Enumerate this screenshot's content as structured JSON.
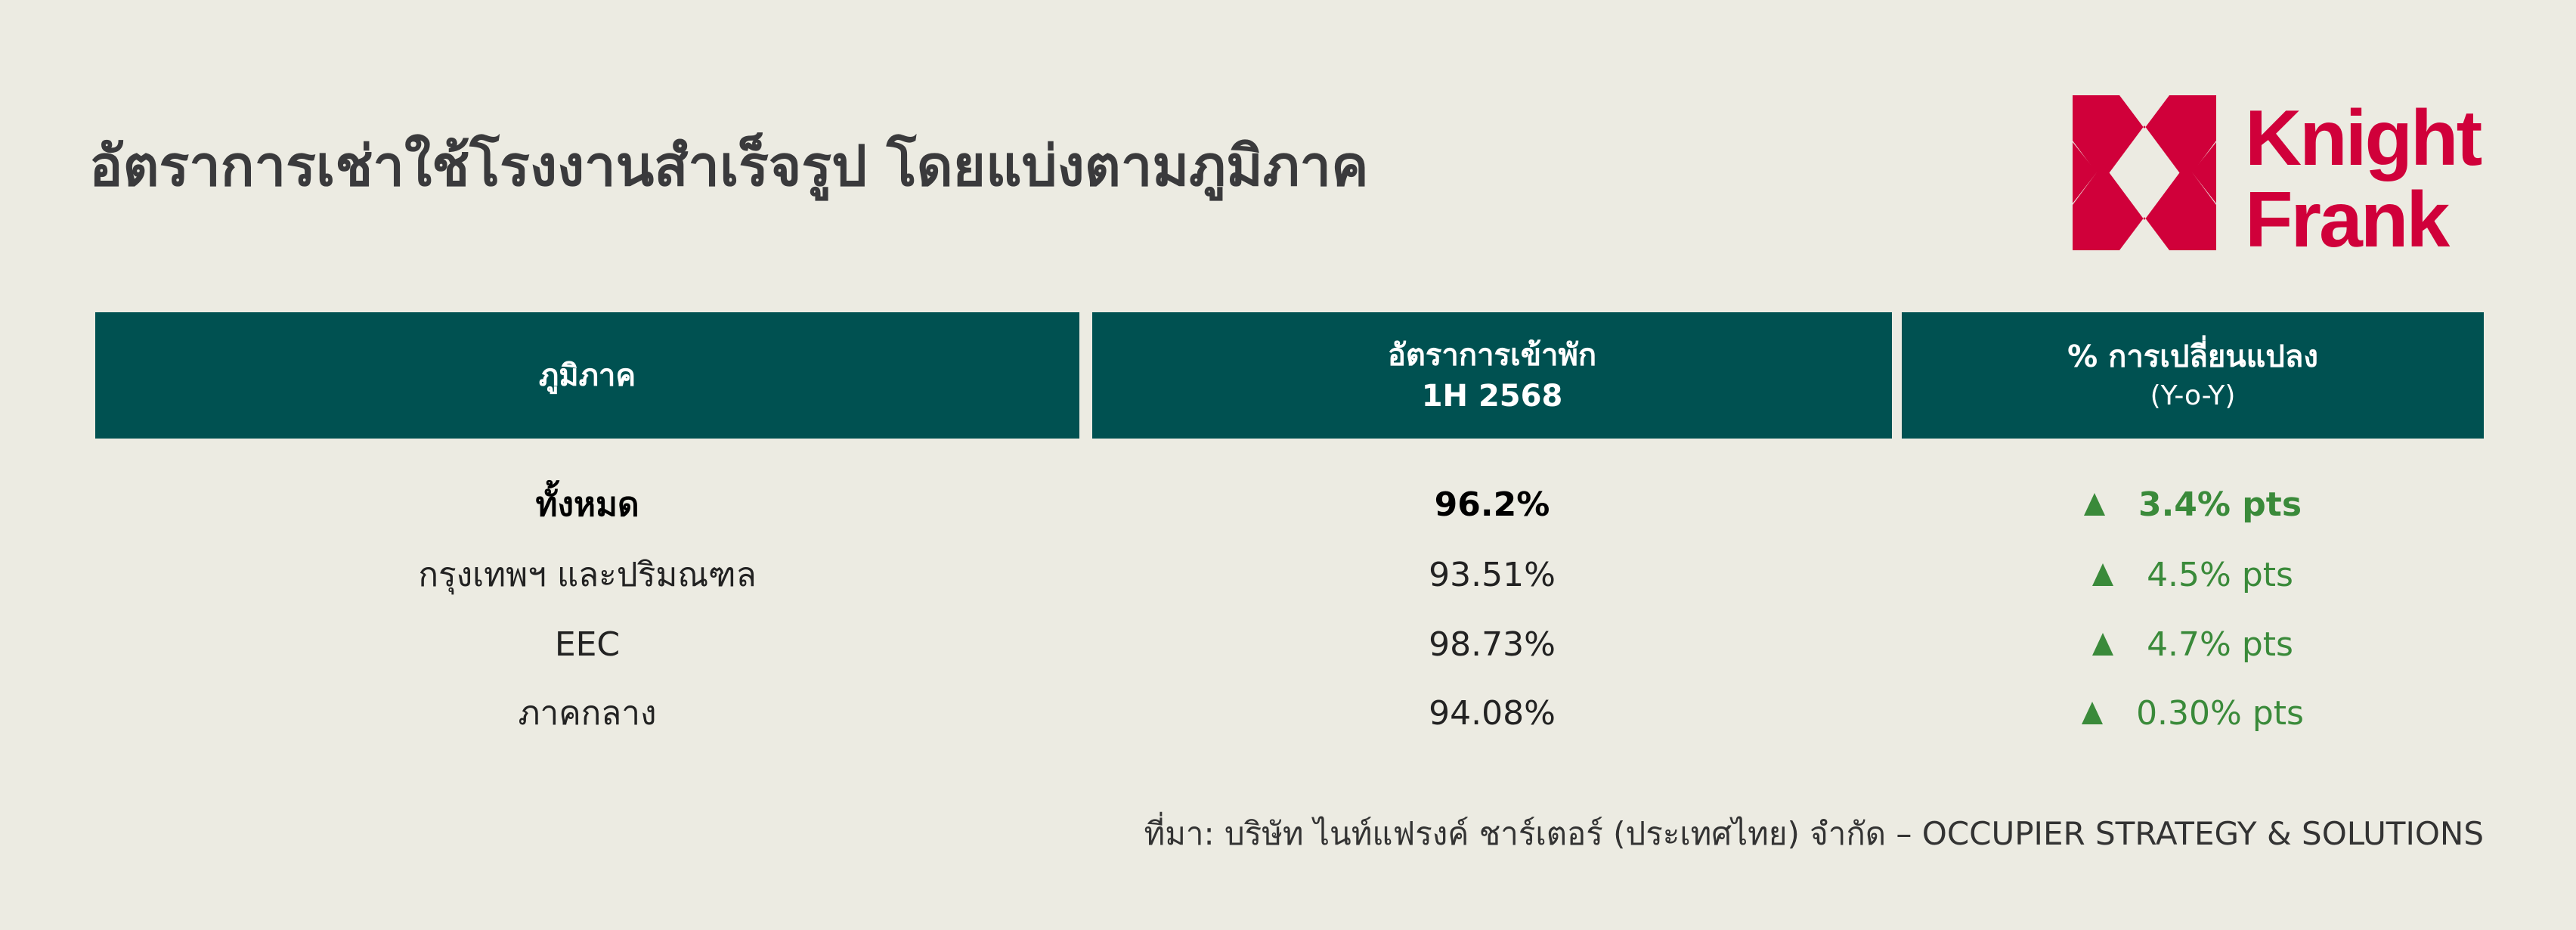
{
  "title": "อัตราการเช่าใช้โรงงานสำเร็จรูป โดยแบ่งตามภูมิภาค",
  "logo": {
    "text_line1": "Knight",
    "text_line2": "Frank",
    "color": "#d0003a"
  },
  "colors": {
    "background": "#ecebe2",
    "header": "#005151",
    "positive": "#3a8a3a"
  },
  "table": {
    "headers": [
      {
        "main": "ภูมิภาค",
        "sub": ""
      },
      {
        "main": "อัตราการเข้าพัก",
        "sub": "1H 2568"
      },
      {
        "main": "% การเปลี่ยนแปลง",
        "sub": "(Y-o-Y)"
      }
    ],
    "rows": [
      {
        "region": "ทั้งหมด",
        "occupancy": "96.2%",
        "change": "3.4% pts",
        "direction": "up",
        "bold": true
      },
      {
        "region": "กรุงเทพฯ และปริมณฑล",
        "occupancy": "93.51%",
        "change": "4.5% pts",
        "direction": "up"
      },
      {
        "region": "EEC",
        "occupancy": "98.73%",
        "change": "4.7% pts",
        "direction": "up"
      },
      {
        "region": "ภาคกลาง",
        "occupancy": "94.08%",
        "change": "0.30% pts",
        "direction": "up"
      }
    ]
  },
  "footer": "ที่มา: บริษัท ไนท์แฟรงค์ ชาร์เตอร์ (ประเทศไทย) จำกัด – OCCUPIER STRATEGY & SOLUTIONS"
}
